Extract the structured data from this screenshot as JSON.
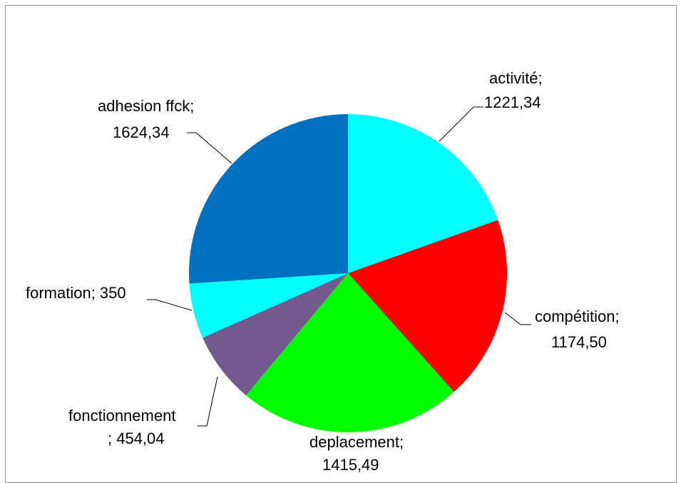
{
  "chart_data": {
    "type": "pie",
    "title": "",
    "slices": [
      {
        "name": "activité;",
        "value": 1221.34,
        "value_label": "1221,34",
        "color": "#00FFFF"
      },
      {
        "name": "compétition;",
        "value": 1174.5,
        "value_label": "1174,50",
        "color": "#FF0000"
      },
      {
        "name": "deplacement;",
        "value": 1415.49,
        "value_label": "1415,49",
        "color": "#00FF00"
      },
      {
        "name": "fonctionnement",
        "value": 454.04,
        "value_label": "; 454,04",
        "color": "#725A8E"
      },
      {
        "name": "formation; 350",
        "value": 350,
        "value_label": "",
        "color": "#00FFFF"
      },
      {
        "name": "adhesion ffck;",
        "value": 1624.34,
        "value_label": "1624,34",
        "color": "#0070C0"
      }
    ],
    "legend": "none",
    "data_labels": "outside with leader lines"
  }
}
